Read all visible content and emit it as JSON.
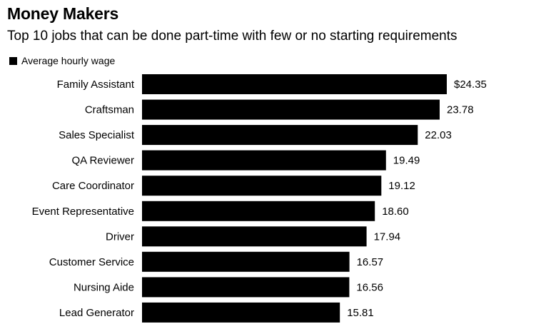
{
  "chart_data": {
    "type": "bar",
    "orientation": "horizontal",
    "title": "Money Makers",
    "subtitle": "Top 10 jobs that can be done part-time with few or no starting requirements",
    "legend": {
      "placement": "top-left",
      "entries": [
        "Average hourly wage"
      ]
    },
    "series": [
      {
        "name": "Average hourly wage",
        "color": "#000000",
        "values": [
          24.35,
          23.78,
          22.03,
          19.49,
          19.12,
          18.6,
          17.94,
          16.57,
          16.56,
          15.81
        ]
      }
    ],
    "categories": [
      "Family Assistant",
      "Craftsman",
      "Sales Specialist",
      "QA Reviewer",
      "Care Coordinator",
      "Event Representative",
      "Driver",
      "Customer Service",
      "Nursing Aide",
      "Lead Generator"
    ],
    "value_labels": [
      "$24.35",
      "23.78",
      "22.03",
      "19.49",
      "19.12",
      "18.60",
      "17.94",
      "16.57",
      "16.56",
      "15.81"
    ],
    "xlim": [
      0,
      24.35
    ],
    "grid": false,
    "xlabel": "",
    "ylabel": ""
  }
}
